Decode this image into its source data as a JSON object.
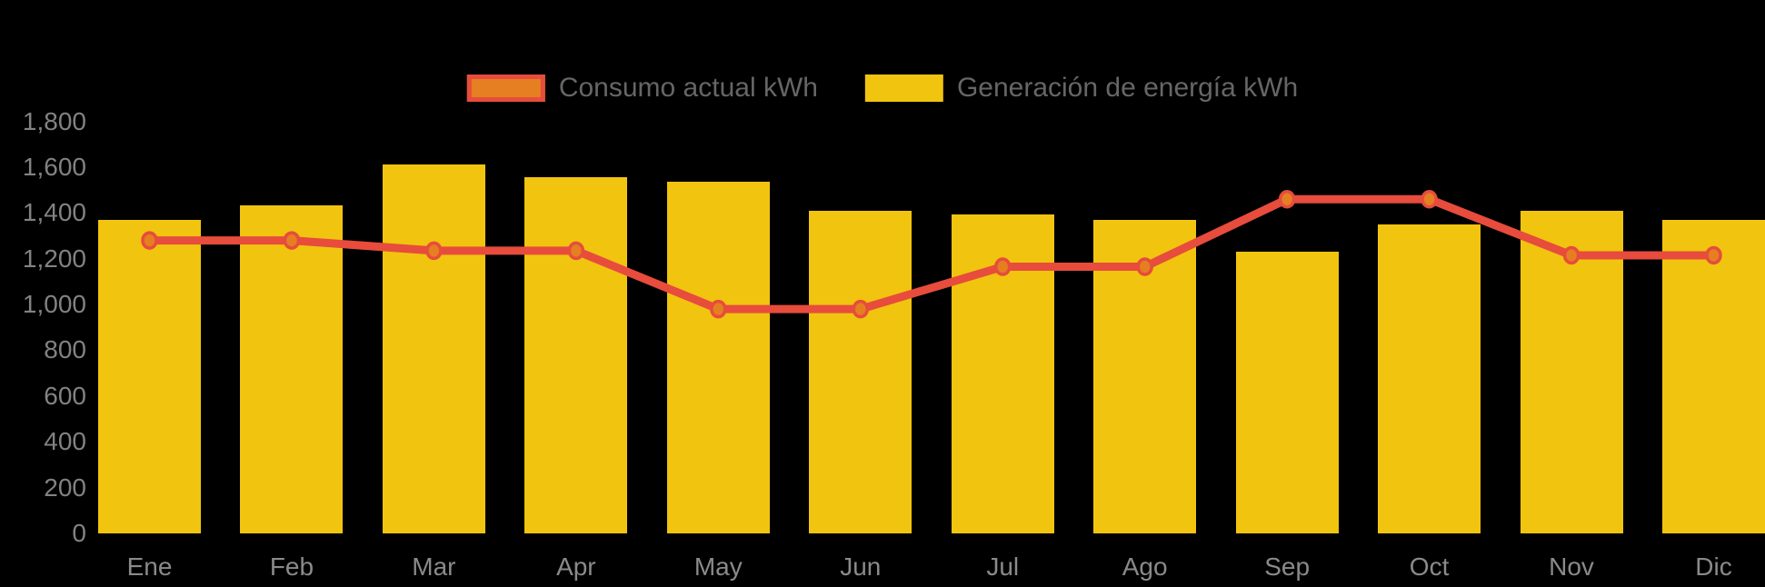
{
  "chart_data": {
    "type": "bar",
    "subtype": "combo-bar-line",
    "title": "",
    "xlabel": "",
    "ylabel": "",
    "categories": [
      "Ene",
      "Feb",
      "Mar",
      "Apr",
      "May",
      "Jun",
      "Jul",
      "Ago",
      "Sep",
      "Oct",
      "Nov",
      "Dic"
    ],
    "series": [
      {
        "name": "Consumo actual kWh",
        "type": "line",
        "line_color": "#e74c3c",
        "point_fill_color": "#e67e22",
        "point_stroke_color": "#e74c3c",
        "values": [
          1280,
          1280,
          1235,
          1235,
          980,
          980,
          1165,
          1165,
          1460,
          1460,
          1215,
          1215
        ]
      },
      {
        "name": "Generación de energía kWh",
        "type": "bar",
        "bar_color": "#f1c40f",
        "values": [
          1370,
          1435,
          1610,
          1555,
          1535,
          1410,
          1395,
          1370,
          1230,
          1350,
          1410,
          1370
        ]
      }
    ],
    "ylim": [
      0,
      1800
    ],
    "ytick_step": 200,
    "ytick_labels": [
      "0",
      "200",
      "400",
      "600",
      "800",
      "1,000",
      "1,200",
      "1,400",
      "1,600",
      "1,800"
    ],
    "grid": false,
    "legend_position": "top-center",
    "background_color": "#000000",
    "axis_text_color": "#828282",
    "legend_text_color": "#666666"
  }
}
